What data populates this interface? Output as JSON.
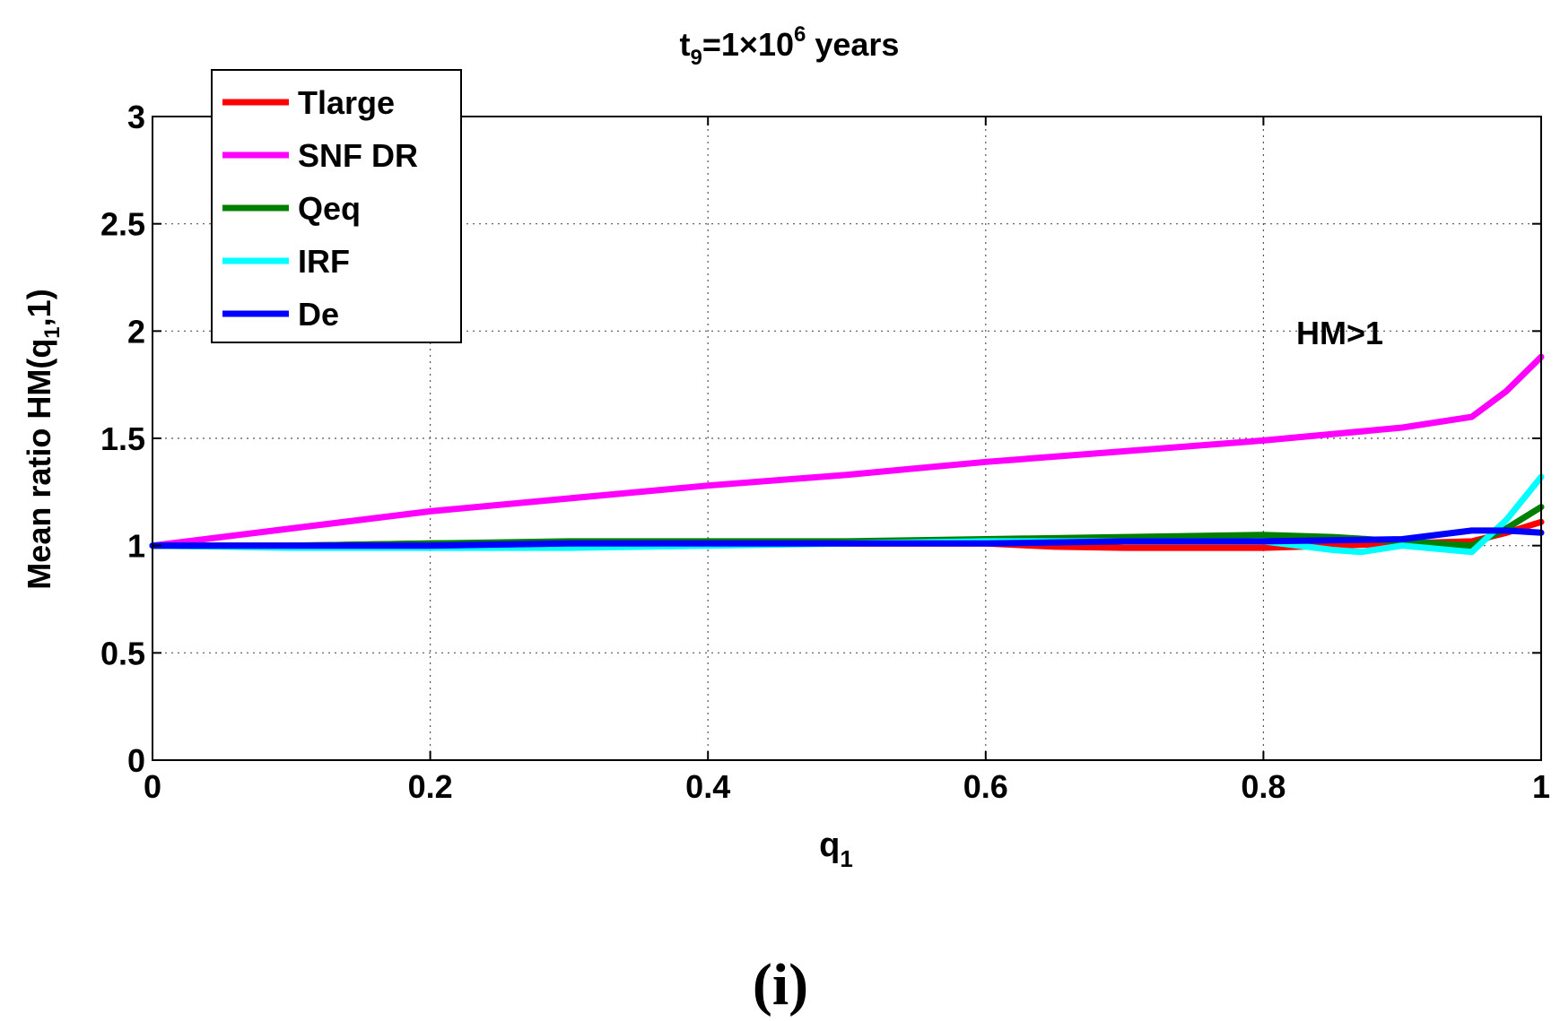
{
  "chart_data": {
    "type": "line",
    "title": {
      "base": "t",
      "sub": "9",
      "mid": "=1×10",
      "sup": "6",
      "tail": " years"
    },
    "xlabel": {
      "base": "q",
      "sub": "1"
    },
    "ylabel": {
      "pre": "Mean ratio HM(q",
      "sub": "1",
      "post": ",1)"
    },
    "xlim": [
      0,
      1
    ],
    "ylim": [
      0,
      3
    ],
    "xticks": [
      0,
      0.2,
      0.4,
      0.6,
      0.8,
      1
    ],
    "xtick_labels": [
      "0",
      "0.2",
      "0.4",
      "0.6",
      "0.8",
      "1"
    ],
    "yticks": [
      0,
      0.5,
      1,
      1.5,
      2,
      2.5,
      3
    ],
    "ytick_labels": [
      "0",
      "0.5",
      "1",
      "1.5",
      "2",
      "2.5",
      "3"
    ],
    "grid": true,
    "legend_position": "top-left",
    "annotation": "HM>1",
    "panel_label": "(i)",
    "series": [
      {
        "name": "Tlarge",
        "color": "#ff0000",
        "x": [
          0,
          0.1,
          0.2,
          0.3,
          0.4,
          0.5,
          0.6,
          0.65,
          0.7,
          0.75,
          0.8,
          0.85,
          0.9,
          0.95,
          0.975,
          1
        ],
        "y": [
          1,
          1,
          1.01,
          1.01,
          1.01,
          1.01,
          1.01,
          0.995,
          0.99,
          0.99,
          0.99,
          1.0,
          1.01,
          1.02,
          1.06,
          1.11
        ]
      },
      {
        "name": "SNF DR",
        "color": "#ff00ff",
        "x": [
          0,
          0.1,
          0.2,
          0.3,
          0.4,
          0.5,
          0.6,
          0.7,
          0.8,
          0.9,
          0.95,
          0.975,
          1
        ],
        "y": [
          1,
          1.08,
          1.16,
          1.22,
          1.28,
          1.33,
          1.39,
          1.44,
          1.49,
          1.55,
          1.6,
          1.72,
          1.88
        ]
      },
      {
        "name": "Qeq",
        "color": "#008000",
        "x": [
          0,
          0.1,
          0.2,
          0.3,
          0.4,
          0.5,
          0.6,
          0.7,
          0.8,
          0.85,
          0.9,
          0.95,
          0.975,
          1
        ],
        "y": [
          1,
          1,
          1.01,
          1.02,
          1.02,
          1.02,
          1.03,
          1.04,
          1.05,
          1.04,
          1.02,
          1.0,
          1.08,
          1.18
        ]
      },
      {
        "name": "IRF",
        "color": "#00ffff",
        "x": [
          0,
          0.1,
          0.2,
          0.3,
          0.4,
          0.5,
          0.6,
          0.7,
          0.8,
          0.85,
          0.87,
          0.9,
          0.95,
          0.975,
          1
        ],
        "y": [
          1,
          0.99,
          0.99,
          0.99,
          1.0,
          1.01,
          1.02,
          1.02,
          1.02,
          0.98,
          0.97,
          1.0,
          0.97,
          1.12,
          1.32
        ]
      },
      {
        "name": "De",
        "color": "#0000ff",
        "x": [
          0,
          0.1,
          0.2,
          0.3,
          0.4,
          0.5,
          0.6,
          0.7,
          0.8,
          0.9,
          0.95,
          0.975,
          1
        ],
        "y": [
          1,
          1,
          1,
          1.01,
          1.01,
          1.01,
          1.01,
          1.02,
          1.02,
          1.03,
          1.07,
          1.07,
          1.06
        ]
      }
    ]
  }
}
